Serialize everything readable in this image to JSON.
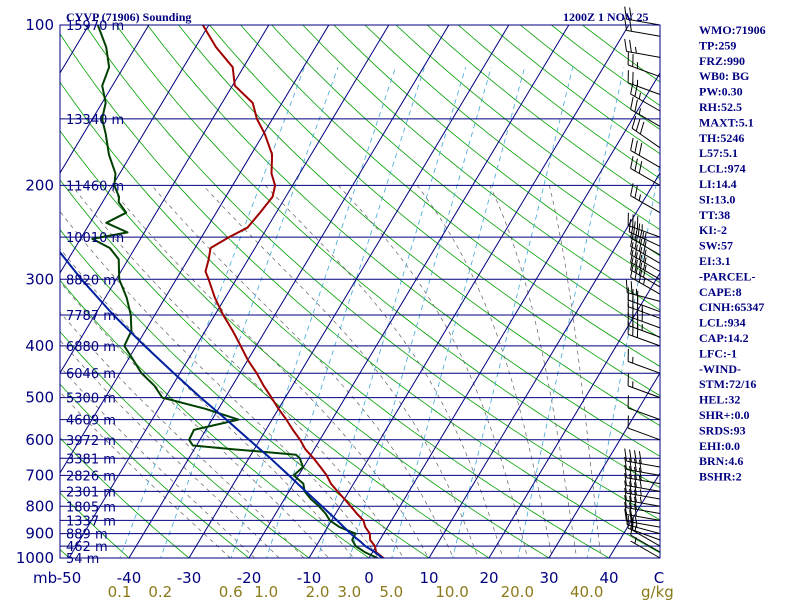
{
  "header": {
    "title": "CYVP (71906) Sounding",
    "date": "1200Z  1 NOV 25"
  },
  "indices": [
    "WMO:71906",
    "TP:259",
    "FRZ:990",
    "WB0: BG",
    "PW:0.30",
    "RH:52.5",
    "MAXT:5.1",
    "TH:5246",
    "L57:5.1",
    "LCL:974",
    "LI:14.4",
    "SI:13.0",
    "TT:38",
    "KI:-2",
    "SW:57",
    "EI:3.1",
    "-PARCEL-",
    "CAPE:8",
    "CINH:65347",
    "LCL:934",
    "CAP:14.2",
    "LFC:-1",
    "-WIND-",
    "STM:72/16",
    "HEL:32",
    "SHR+:0.0",
    "SRDS:93",
    "EHI:0.0",
    "BRN:4.6",
    "BSHR:2"
  ],
  "axes": {
    "pressure_labels": [
      "100",
      "200",
      "300",
      "400",
      "500",
      "600",
      "700",
      "800",
      "900",
      "1000"
    ],
    "pressure_values": [
      100,
      200,
      300,
      400,
      500,
      600,
      700,
      800,
      900,
      1000
    ],
    "pressure_unit": "mb",
    "temperature_ticks": [
      "-50",
      "-40",
      "-30",
      "-20",
      "-10",
      "0",
      "10",
      "20",
      "30",
      "40"
    ],
    "temperature_values": [
      -50,
      -40,
      -30,
      -20,
      -10,
      0,
      10,
      20,
      30,
      40
    ],
    "temperature_unit": "C",
    "mixing_ratio_labels": [
      "0.1",
      "0.2",
      "0.6",
      "1.0",
      "2.0",
      "3.0",
      "5.0",
      "10.0",
      "20.0",
      "40.0"
    ],
    "mixing_ratio_values": [
      0.1,
      0.2,
      0.6,
      1.0,
      2.0,
      3.0,
      5.0,
      10.0,
      20.0,
      40.0
    ],
    "mixing_ratio_unit": "g/kg"
  },
  "heights": [
    {
      "p": 100,
      "label": "15970 m"
    },
    {
      "p": 150,
      "label": "13340 m"
    },
    {
      "p": 200,
      "label": "11460 m"
    },
    {
      "p": 250,
      "label": "10010 m"
    },
    {
      "p": 300,
      "label": "8820 m"
    },
    {
      "p": 350,
      "label": "7787 m"
    },
    {
      "p": 400,
      "label": "6880 m"
    },
    {
      "p": 450,
      "label": "6046 m"
    },
    {
      "p": 500,
      "label": "5300 m"
    },
    {
      "p": 550,
      "label": "4609 m"
    },
    {
      "p": 600,
      "label": "3972 m"
    },
    {
      "p": 650,
      "label": "3381 m"
    },
    {
      "p": 700,
      "label": "2826 m"
    },
    {
      "p": 750,
      "label": "2301 m"
    },
    {
      "p": 800,
      "label": "1805 m"
    },
    {
      "p": 850,
      "label": "1337 m"
    },
    {
      "p": 900,
      "label": "889 m"
    },
    {
      "p": 950,
      "label": "462 m"
    },
    {
      "p": 1000,
      "label": "54 m"
    }
  ],
  "colors": {
    "temperature": "#a00000",
    "dewpoint": "#004000",
    "parcel": "#0020a0",
    "isobar": "#000080",
    "isotherm": "#000080",
    "dry_adiabat": "#00a000",
    "mixing_ratio": "#40a8d8",
    "moist_adiabat": "#606060"
  },
  "chart_data": {
    "type": "line",
    "title": "CYVP (71906) Sounding",
    "xlabel": "C",
    "ylabel": "mb",
    "ylim": [
      100,
      1000
    ],
    "xlim": [
      -50,
      50
    ],
    "y_scale": "log",
    "series": [
      {
        "key": "temperature",
        "points": [
          [
            1004,
            2.5
          ],
          [
            1000,
            2.4
          ],
          [
            975,
            0.6
          ],
          [
            950,
            -0.2
          ],
          [
            925,
            -1.6
          ],
          [
            900,
            -2.3
          ],
          [
            875,
            -3.7
          ],
          [
            850,
            -4.7
          ],
          [
            825,
            -6.5
          ],
          [
            800,
            -8.2
          ],
          [
            775,
            -10.0
          ],
          [
            750,
            -11.9
          ],
          [
            725,
            -13.8
          ],
          [
            700,
            -15.3
          ],
          [
            675,
            -17.2
          ],
          [
            650,
            -19.2
          ],
          [
            625,
            -21.5
          ],
          [
            600,
            -23.3
          ],
          [
            575,
            -25.5
          ],
          [
            550,
            -27.6
          ],
          [
            525,
            -30.0
          ],
          [
            500,
            -32.3
          ],
          [
            475,
            -34.8
          ],
          [
            450,
            -37.2
          ],
          [
            425,
            -40.0
          ],
          [
            400,
            -42.6
          ],
          [
            375,
            -45.4
          ],
          [
            350,
            -48.6
          ],
          [
            325,
            -51.7
          ],
          [
            300,
            -54.6
          ],
          [
            290,
            -55.9
          ],
          [
            275,
            -56.6
          ],
          [
            262,
            -57.4
          ],
          [
            250,
            -55.4
          ],
          [
            240,
            -53.3
          ],
          [
            225,
            -52.7
          ],
          [
            210,
            -52.2
          ],
          [
            200,
            -52.9
          ],
          [
            190,
            -54.7
          ],
          [
            175,
            -56.5
          ],
          [
            160,
            -59.8
          ],
          [
            150,
            -62.6
          ],
          [
            140,
            -64.9
          ],
          [
            130,
            -69.6
          ],
          [
            120,
            -71.8
          ],
          [
            110,
            -76.6
          ],
          [
            100,
            -81.0
          ]
        ]
      },
      {
        "key": "dewpoint",
        "points": [
          [
            1004,
            1.5
          ],
          [
            1000,
            1.4
          ],
          [
            975,
            -1.3
          ],
          [
            950,
            -3.4
          ],
          [
            925,
            -4.6
          ],
          [
            900,
            -4.7
          ],
          [
            875,
            -8.0
          ],
          [
            850,
            -10.3
          ],
          [
            825,
            -11.7
          ],
          [
            800,
            -13.5
          ],
          [
            775,
            -15.6
          ],
          [
            750,
            -17.4
          ],
          [
            725,
            -18.4
          ],
          [
            700,
            -20.8
          ],
          [
            675,
            -20.1
          ],
          [
            650,
            -21.5
          ],
          [
            640,
            -22.5
          ],
          [
            625,
            -33.6
          ],
          [
            615,
            -40.6
          ],
          [
            600,
            -41.8
          ],
          [
            575,
            -42.0
          ],
          [
            550,
            -35.6
          ],
          [
            525,
            -42.2
          ],
          [
            500,
            -50.5
          ],
          [
            475,
            -53.0
          ],
          [
            450,
            -56.4
          ],
          [
            425,
            -59.1
          ],
          [
            400,
            -62.0
          ],
          [
            375,
            -62.3
          ],
          [
            350,
            -64.0
          ],
          [
            325,
            -66.4
          ],
          [
            300,
            -69.5
          ],
          [
            275,
            -71.6
          ],
          [
            262,
            -74.2
          ],
          [
            252,
            -78.0
          ],
          [
            245,
            -72.8
          ],
          [
            235,
            -77.3
          ],
          [
            225,
            -75.0
          ],
          [
            215,
            -77.3
          ],
          [
            210,
            -77.8
          ],
          [
            200,
            -79.7
          ],
          [
            190,
            -80.7
          ],
          [
            175,
            -83.7
          ],
          [
            160,
            -86.3
          ],
          [
            150,
            -88.4
          ],
          [
            140,
            -89.4
          ],
          [
            130,
            -91.7
          ],
          [
            120,
            -92.4
          ],
          [
            110,
            -94.9
          ],
          [
            100,
            -98.5
          ]
        ]
      },
      {
        "key": "parcel",
        "points": [
          [
            1004,
            2.5
          ],
          [
            980,
            0.8
          ],
          [
            950,
            -1.8
          ],
          [
            934,
            -2.9
          ],
          [
            900,
            -5.5
          ],
          [
            850,
            -9.1
          ],
          [
            800,
            -13.0
          ],
          [
            750,
            -17.2
          ],
          [
            700,
            -21.6
          ],
          [
            650,
            -26.4
          ],
          [
            600,
            -31.8
          ],
          [
            550,
            -37.6
          ],
          [
            500,
            -44.1
          ],
          [
            450,
            -51.0
          ],
          [
            400,
            -58.6
          ],
          [
            350,
            -66.9
          ],
          [
            300,
            -75.8
          ],
          [
            250,
            -85.6
          ],
          [
            200,
            -96.6
          ],
          [
            160,
            -106.0
          ],
          [
            140,
            -112.0
          ]
        ]
      }
    ],
    "wind_barbs": [
      {
        "p": 1000,
        "dir": 300,
        "spd": 5
      },
      {
        "p": 975,
        "dir": 300,
        "spd": 10
      },
      {
        "p": 950,
        "dir": 300,
        "spd": 15
      },
      {
        "p": 925,
        "dir": 290,
        "spd": 20
      },
      {
        "p": 900,
        "dir": 285,
        "spd": 25
      },
      {
        "p": 875,
        "dir": 280,
        "spd": 25
      },
      {
        "p": 850,
        "dir": 280,
        "spd": 30
      },
      {
        "p": 825,
        "dir": 280,
        "spd": 30
      },
      {
        "p": 800,
        "dir": 280,
        "spd": 35
      },
      {
        "p": 775,
        "dir": 280,
        "spd": 35
      },
      {
        "p": 750,
        "dir": 280,
        "spd": 40
      },
      {
        "p": 725,
        "dir": 280,
        "spd": 40
      },
      {
        "p": 700,
        "dir": 280,
        "spd": 40
      },
      {
        "p": 675,
        "dir": 280,
        "spd": 40
      },
      {
        "p": 600,
        "dir": 290,
        "spd": 10
      },
      {
        "p": 550,
        "dir": 290,
        "spd": 10
      },
      {
        "p": 500,
        "dir": 290,
        "spd": 15
      },
      {
        "p": 450,
        "dir": 290,
        "spd": 15
      },
      {
        "p": 400,
        "dir": 290,
        "spd": 30
      },
      {
        "p": 385,
        "dir": 290,
        "spd": 35
      },
      {
        "p": 370,
        "dir": 290,
        "spd": 40
      },
      {
        "p": 355,
        "dir": 290,
        "spd": 35
      },
      {
        "p": 345,
        "dir": 290,
        "spd": 30
      },
      {
        "p": 330,
        "dir": 285,
        "spd": 25
      },
      {
        "p": 320,
        "dir": 300,
        "spd": 35
      },
      {
        "p": 310,
        "dir": 300,
        "spd": 40
      },
      {
        "p": 300,
        "dir": 300,
        "spd": 40
      },
      {
        "p": 290,
        "dir": 300,
        "spd": 40
      },
      {
        "p": 280,
        "dir": 300,
        "spd": 40
      },
      {
        "p": 270,
        "dir": 300,
        "spd": 40
      },
      {
        "p": 260,
        "dir": 295,
        "spd": 35
      },
      {
        "p": 250,
        "dir": 290,
        "spd": 35
      },
      {
        "p": 225,
        "dir": 300,
        "spd": 25
      },
      {
        "p": 200,
        "dir": 300,
        "spd": 30
      },
      {
        "p": 185,
        "dir": 300,
        "spd": 30
      },
      {
        "p": 170,
        "dir": 305,
        "spd": 30
      },
      {
        "p": 155,
        "dir": 300,
        "spd": 25
      },
      {
        "p": 145,
        "dir": 300,
        "spd": 25
      },
      {
        "p": 135,
        "dir": 290,
        "spd": 25
      },
      {
        "p": 125,
        "dir": 290,
        "spd": 25
      },
      {
        "p": 115,
        "dir": 280,
        "spd": 25
      },
      {
        "p": 105,
        "dir": 280,
        "spd": 20
      },
      {
        "p": 100,
        "dir": 280,
        "spd": 20
      }
    ]
  }
}
